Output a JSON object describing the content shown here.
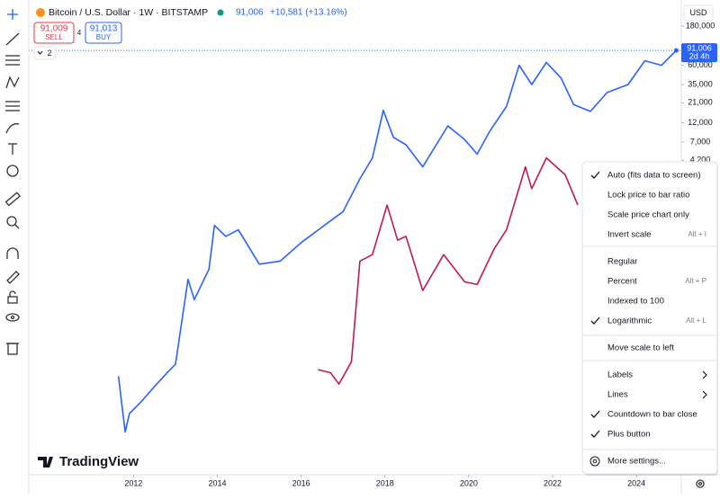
{
  "header": {
    "symbol": "Bitcoin / U.S. Dollar · 1W · BITSTAMP",
    "last": "91,006",
    "change": "+10,581 (+13.16%)",
    "sell_price": "91,009",
    "sell_label": "SELL",
    "spread": "4",
    "buy_price": "91,013",
    "buy_label": "BUY",
    "indicators": "2"
  },
  "price_scale": {
    "currency": "USD",
    "last_price": "91,006",
    "countdown": "2d 4h"
  },
  "brand": "TradingView",
  "chart_data": {
    "type": "line",
    "log_scale": true,
    "xlim": [
      2009.5,
      2025.07
    ],
    "xticks": [
      2012,
      2014,
      2016,
      2018,
      2020,
      2022,
      2024
    ],
    "ylim": [
      0.65,
      373000
    ],
    "yticks": [
      {
        "value": 180000,
        "label": "180,000"
      },
      {
        "value": 100000,
        "label": "100,000"
      },
      {
        "value": 60000,
        "label": "60,000"
      },
      {
        "value": 35000,
        "label": "35,000"
      },
      {
        "value": 21000,
        "label": "21,000"
      },
      {
        "value": 12000,
        "label": "12,000"
      },
      {
        "value": 7000,
        "label": "7,000"
      },
      {
        "value": 4200,
        "label": "4,200"
      }
    ],
    "series": [
      {
        "color": "#2962ff",
        "x": [
          2011.64,
          2011.8,
          2011.9,
          2012.2,
          2012.5,
          2012.8,
          2013.0,
          2013.3,
          2013.45,
          2013.8,
          2013.93,
          2014.2,
          2014.5,
          2015.0,
          2015.5,
          2016.0,
          2016.5,
          2017.0,
          2017.4,
          2017.7,
          2017.96,
          2018.2,
          2018.5,
          2018.9,
          2019.5,
          2019.9,
          2020.2,
          2020.5,
          2020.9,
          2021.2,
          2021.5,
          2021.85,
          2022.2,
          2022.5,
          2022.9,
          2023.3,
          2023.8,
          2024.2,
          2024.6,
          2024.95
        ],
        "values": [
          10,
          2.1,
          3.5,
          5,
          7.5,
          11,
          14,
          150,
          85,
          200,
          680,
          500,
          600,
          230,
          250,
          420,
          650,
          1000,
          2500,
          4500,
          17000,
          8000,
          6500,
          3500,
          11000,
          7500,
          5000,
          9500,
          19000,
          60000,
          35000,
          65000,
          42000,
          20000,
          16500,
          28000,
          35000,
          68000,
          60000,
          91006
        ]
      },
      {
        "color": "#c2185b",
        "x": [
          2016.4,
          2016.7,
          2016.9,
          2017.2,
          2017.4,
          2017.7,
          2018.05,
          2018.3,
          2018.5,
          2018.9,
          2019.4,
          2019.9,
          2020.2,
          2020.6,
          2020.9,
          2021.35,
          2021.5,
          2021.85,
          2022.3,
          2022.6
        ],
        "values": [
          12,
          11,
          8,
          15,
          250,
          300,
          1200,
          450,
          500,
          110,
          300,
          140,
          130,
          350,
          600,
          3500,
          1900,
          4500,
          2800,
          1200
        ]
      }
    ]
  },
  "menu": {
    "items": [
      {
        "label": "Auto (fits data to screen)",
        "checked": true
      },
      {
        "label": "Lock price to bar ratio",
        "checked": false
      },
      {
        "label": "Scale price chart only",
        "checked": false
      },
      {
        "label": "Invert scale",
        "shortcut": "Alt + I",
        "checked": false
      },
      {
        "label": "Regular",
        "checked": false
      },
      {
        "label": "Percent",
        "shortcut": "Alt + P",
        "checked": false
      },
      {
        "label": "Indexed to 100",
        "checked": false
      },
      {
        "label": "Logarithmic",
        "shortcut": "Alt + L",
        "checked": true
      },
      {
        "label": "Move scale to left",
        "checked": false
      },
      {
        "label": "Labels",
        "submenu": true,
        "checked": false
      },
      {
        "label": "Lines",
        "submenu": true,
        "checked": false
      },
      {
        "label": "Countdown to bar close",
        "checked": true
      },
      {
        "label": "Plus button",
        "checked": true
      },
      {
        "label": "More settings...",
        "settings": true,
        "checked": false
      }
    ]
  }
}
